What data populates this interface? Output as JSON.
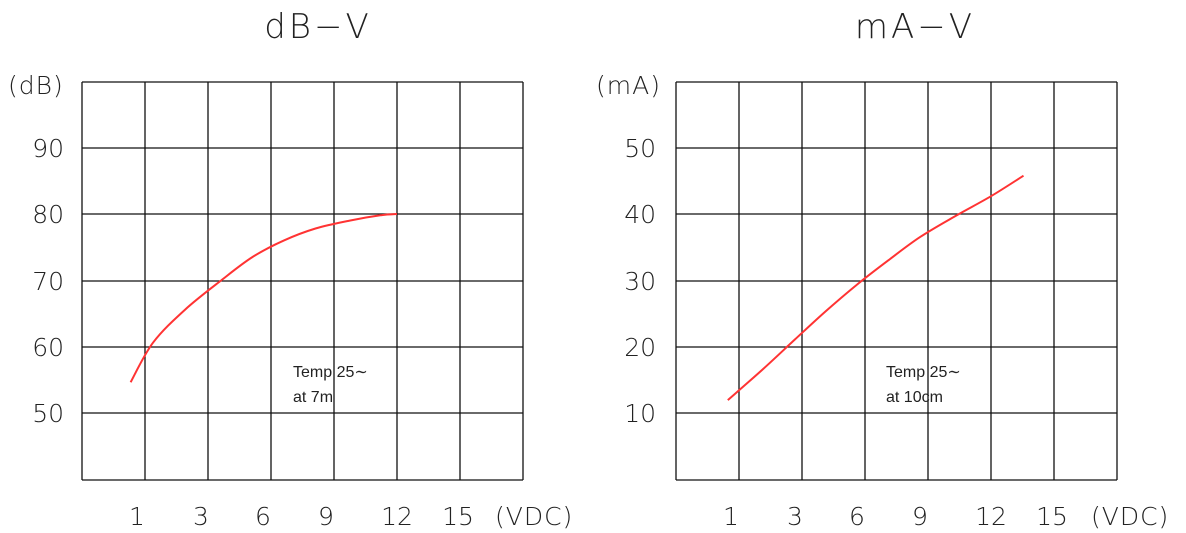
{
  "chart_data": [
    {
      "type": "line",
      "title": "dB−V",
      "ylabel": "(dB)",
      "xlabel": "(VDC)",
      "x_ticks": [
        "1",
        "3",
        "6",
        "9",
        "12",
        "15"
      ],
      "y_ticks": [
        "90",
        "80",
        "70",
        "60",
        "50"
      ],
      "grid": true,
      "line_color": "#ff3333",
      "annotation": [
        "Temp 25∼",
        "at 7m"
      ],
      "series": [
        {
          "x": [
            0.8,
            1.5,
            2.5,
            4,
            5.5,
            7,
            8.5,
            10,
            11.3,
            12
          ],
          "y": [
            54.5,
            60.5,
            65.5,
            70,
            73.5,
            76,
            77.8,
            79,
            79.8,
            80
          ]
        }
      ]
    },
    {
      "type": "line",
      "title": "mA−V",
      "ylabel": "(mA)",
      "xlabel": "(VDC)",
      "x_ticks": [
        "1",
        "3",
        "6",
        "9",
        "12",
        "15"
      ],
      "y_ticks": [
        "50",
        "40",
        "30",
        "20",
        "10"
      ],
      "grid": true,
      "line_color": "#ff3333",
      "annotation": [
        "Temp 25∼",
        "at 10cm"
      ],
      "series": [
        {
          "x": [
            0.9,
            2,
            3,
            4.5,
            6,
            7.5,
            9,
            10.5,
            12,
            13.6
          ],
          "y": [
            11.8,
            16.5,
            21,
            25.3,
            29.3,
            33,
            36.5,
            39.7,
            42.7,
            45.8
          ]
        }
      ]
    }
  ]
}
